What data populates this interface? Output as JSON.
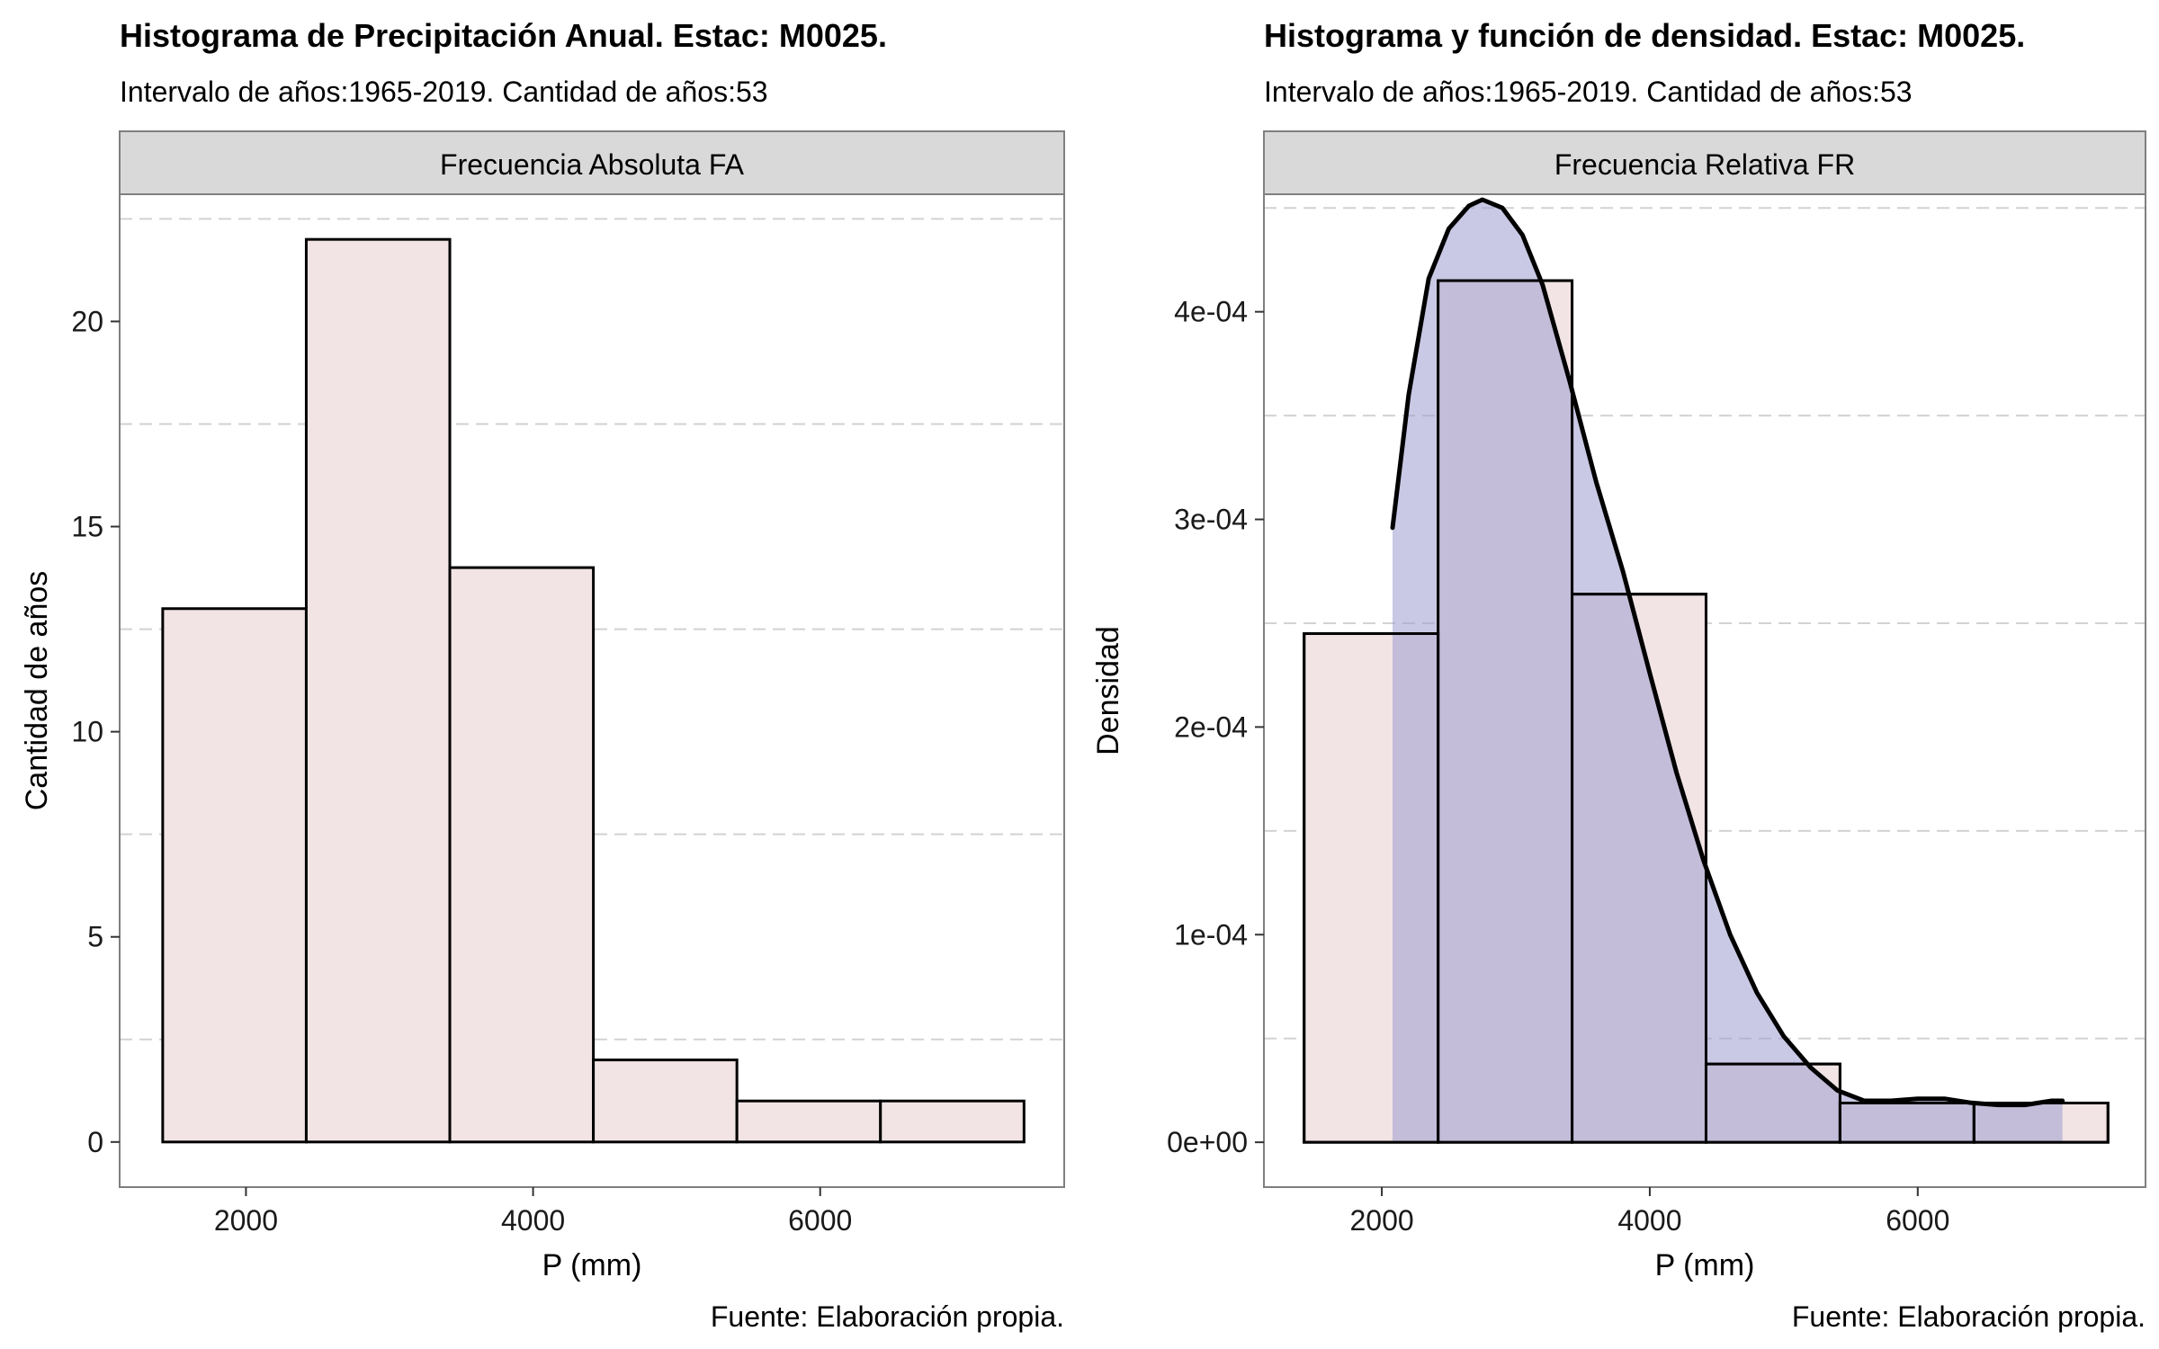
{
  "chart_data": [
    {
      "type": "bar",
      "title": "Histograma de Precipitación Anual. Estac: M0025.",
      "subtitle": "Intervalo de años:1965-2019. Cantidad de años:53",
      "facet_label": "Frecuencia Absoluta FA",
      "xlabel": "P (mm)",
      "ylabel": "Cantidad de años",
      "caption": "Fuente: Elaboración propia.",
      "xlim": [
        1120,
        7700
      ],
      "ylim": [
        -1.1,
        23.1
      ],
      "x_ticks": [
        2000,
        4000,
        6000
      ],
      "x_tick_labels": [
        "2000",
        "4000",
        "6000"
      ],
      "y_ticks": [
        0,
        5,
        10,
        15,
        20
      ],
      "y_tick_labels": [
        "0",
        "5",
        "10",
        "15",
        "20"
      ],
      "y_minor_grid": [
        2.5,
        7.5,
        12.5,
        17.5,
        22.5
      ],
      "bins": [
        {
          "start": 1420,
          "end": 2420,
          "value": 13
        },
        {
          "start": 2420,
          "end": 3420,
          "value": 22
        },
        {
          "start": 3420,
          "end": 4420,
          "value": 14
        },
        {
          "start": 4420,
          "end": 5420,
          "value": 2
        },
        {
          "start": 5420,
          "end": 6420,
          "value": 1
        },
        {
          "start": 6420,
          "end": 7420,
          "value": 1
        }
      ],
      "colors": {
        "bar_fill": "#f2e4e4",
        "bar_stroke": "#000000"
      }
    },
    {
      "type": "bar",
      "title": "Histograma y función de densidad. Estac: M0025.",
      "subtitle": "Intervalo de años:1965-2019. Cantidad de años:53",
      "facet_label": "Frecuencia Relativa FR",
      "xlabel": "P (mm)",
      "ylabel": "Densidad",
      "caption": "Fuente: Elaboración propia.",
      "xlim": [
        1120,
        7700
      ],
      "ylim": [
        -2.16e-05,
        0.0004566
      ],
      "x_ticks": [
        2000,
        4000,
        6000
      ],
      "x_tick_labels": [
        "2000",
        "4000",
        "6000"
      ],
      "y_ticks": [
        0,
        0.0001,
        0.0002,
        0.0003,
        0.0004
      ],
      "y_tick_labels": [
        "0e+00",
        "1e-04",
        "2e-04",
        "3e-04",
        "4e-04"
      ],
      "y_minor_grid": [
        5e-05,
        0.00015,
        0.00025,
        0.00035,
        0.00045
      ],
      "bins": [
        {
          "start": 1420,
          "end": 2420,
          "value": 0.000245
        },
        {
          "start": 2420,
          "end": 3420,
          "value": 0.000415
        },
        {
          "start": 3420,
          "end": 4420,
          "value": 0.000264
        },
        {
          "start": 4420,
          "end": 5420,
          "value": 3.77e-05
        },
        {
          "start": 5420,
          "end": 6420,
          "value": 1.89e-05
        },
        {
          "start": 6420,
          "end": 7420,
          "value": 1.89e-05
        }
      ],
      "density": {
        "x": [
          2080,
          2200,
          2350,
          2500,
          2650,
          2750,
          2900,
          3050,
          3200,
          3400,
          3600,
          3800,
          4000,
          4200,
          4400,
          4600,
          4800,
          5000,
          5200,
          5400,
          5600,
          5800,
          6000,
          6200,
          6400,
          6600,
          6800,
          7000,
          7080
        ],
        "y": [
          0.000296,
          0.00036,
          0.000416,
          0.00044,
          0.000451,
          0.000454,
          0.00045,
          0.000437,
          0.000413,
          0.000367,
          0.000318,
          0.000275,
          0.000226,
          0.000178,
          0.000136,
          0.0001,
          7.2e-05,
          5.1e-05,
          3.6e-05,
          2.5e-05,
          2e-05,
          2e-05,
          2.1e-05,
          2.1e-05,
          1.9e-05,
          1.8e-05,
          1.8e-05,
          2e-05,
          2e-05
        ]
      },
      "colors": {
        "bar_fill": "#f2e4e4",
        "bar_stroke": "#000000",
        "density_fill": "#9c9ccf",
        "density_line": "#000000"
      }
    }
  ]
}
